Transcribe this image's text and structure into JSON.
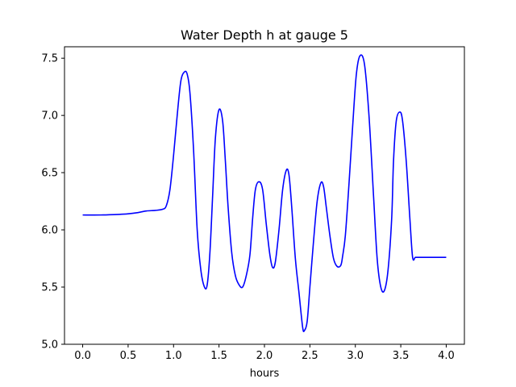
{
  "chart_data": {
    "type": "line",
    "title": "Water Depth h at gauge 5",
    "xlabel": "hours",
    "ylabel": "",
    "xlim": [
      -0.2,
      4.2
    ],
    "ylim": [
      5.0,
      7.6
    ],
    "xticks": [
      0.0,
      0.5,
      1.0,
      1.5,
      2.0,
      2.5,
      3.0,
      3.5,
      4.0
    ],
    "xtick_labels": [
      "0.0",
      "0.5",
      "1.0",
      "1.5",
      "2.0",
      "2.5",
      "3.0",
      "3.5",
      "4.0"
    ],
    "yticks": [
      5.0,
      5.5,
      6.0,
      6.5,
      7.0,
      7.5
    ],
    "ytick_labels": [
      "5.0",
      "5.5",
      "6.0",
      "6.5",
      "7.0",
      "7.5"
    ],
    "grid": false,
    "legend": "none",
    "series": [
      {
        "color": "#0000ff",
        "x": [
          0.0,
          0.2,
          0.4,
          0.5,
          0.6,
          0.7,
          0.8,
          0.88,
          0.92,
          0.96,
          1.0,
          1.04,
          1.08,
          1.12,
          1.15,
          1.18,
          1.22,
          1.26,
          1.3,
          1.34,
          1.37,
          1.4,
          1.43,
          1.46,
          1.5,
          1.54,
          1.57,
          1.6,
          1.64,
          1.68,
          1.72,
          1.76,
          1.8,
          1.84,
          1.87,
          1.9,
          1.94,
          1.98,
          2.02,
          2.06,
          2.09,
          2.12,
          2.16,
          2.2,
          2.24,
          2.27,
          2.3,
          2.34,
          2.38,
          2.42,
          2.44,
          2.47,
          2.5,
          2.54,
          2.58,
          2.62,
          2.65,
          2.68,
          2.72,
          2.76,
          2.8,
          2.84,
          2.86,
          2.89,
          2.93,
          2.97,
          3.01,
          3.05,
          3.1,
          3.15,
          3.2,
          3.24,
          3.28,
          3.32,
          3.36,
          3.4,
          3.42,
          3.45,
          3.49,
          3.52,
          3.56,
          3.6,
          3.63,
          3.66,
          3.69,
          3.72,
          3.76,
          3.8,
          3.84,
          3.87,
          3.9,
          3.94,
          3.97,
          4.0
        ],
        "y": [
          6.13,
          6.13,
          6.135,
          6.14,
          6.15,
          6.165,
          6.17,
          6.18,
          6.21,
          6.35,
          6.65,
          7.0,
          7.3,
          7.38,
          7.36,
          7.2,
          6.7,
          6.0,
          5.65,
          5.5,
          5.52,
          5.8,
          6.3,
          6.8,
          7.05,
          6.95,
          6.6,
          6.2,
          5.8,
          5.6,
          5.52,
          5.5,
          5.6,
          5.78,
          6.1,
          6.35,
          6.42,
          6.35,
          6.05,
          5.78,
          5.67,
          5.72,
          6.0,
          6.35,
          6.52,
          6.48,
          6.2,
          5.75,
          5.45,
          5.15,
          5.12,
          5.2,
          5.5,
          5.9,
          6.25,
          6.41,
          6.38,
          6.2,
          5.95,
          5.75,
          5.68,
          5.69,
          5.77,
          5.95,
          6.4,
          6.9,
          7.35,
          7.52,
          7.45,
          7.0,
          6.3,
          5.75,
          5.5,
          5.47,
          5.65,
          6.1,
          6.6,
          6.95,
          7.03,
          6.95,
          6.6,
          6.1,
          5.76,
          5.76,
          5.76,
          5.76,
          5.76,
          5.76,
          5.76,
          5.76,
          5.76,
          5.76,
          5.76,
          5.76
        ]
      }
    ]
  }
}
